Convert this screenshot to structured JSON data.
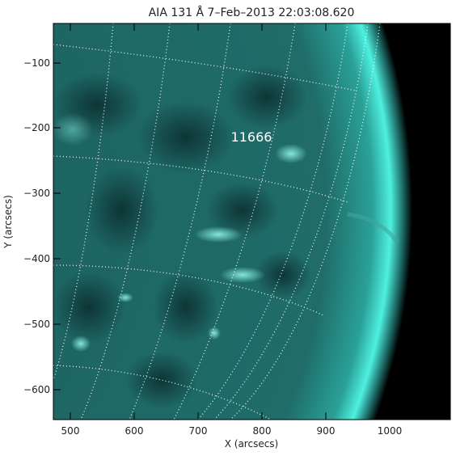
{
  "figure": {
    "title": "AIA 131 Å  7–Feb–2013 22:03:08.620",
    "xlabel": "X (arcsecs)",
    "ylabel": "Y (arcsecs)",
    "region_label": "11666",
    "x_ticks": [
      "500",
      "600",
      "700",
      "800",
      "900",
      "1000"
    ],
    "y_ticks": [
      "−100",
      "−200",
      "−300",
      "−400",
      "−500",
      "−600"
    ],
    "colors": {
      "disk": "#1a5e5b",
      "limb": "#3fe0d0",
      "space": "#000000",
      "grid": "#ffffff"
    }
  }
}
